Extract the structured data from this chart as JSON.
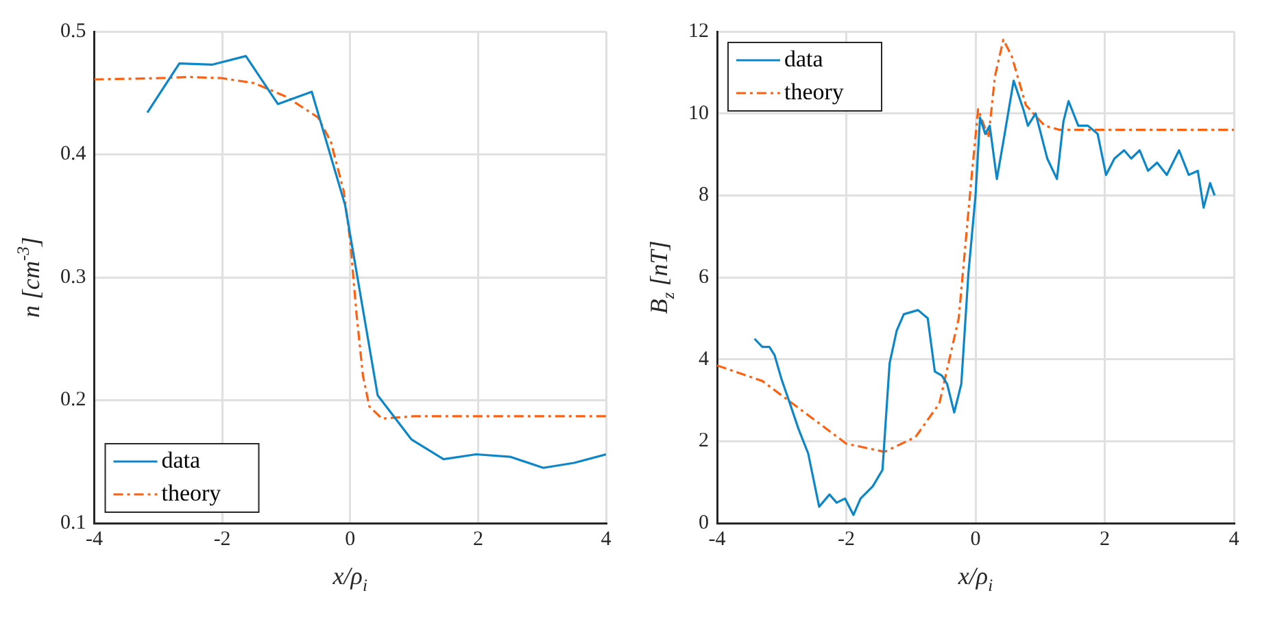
{
  "chart_data": [
    {
      "type": "line",
      "xlabel": "x/ρ$_{i}$",
      "ylabel": "n [cm$^{-3}$]",
      "xlim": [
        -4,
        4
      ],
      "xticks": [
        -4,
        -2,
        0,
        2,
        4
      ],
      "ylim": [
        0.1,
        0.5
      ],
      "yticks": [
        0.1,
        0.2,
        0.3,
        0.4,
        0.5
      ],
      "grid": true,
      "legend": "bottom left",
      "series": [
        {
          "name": "data",
          "color": "#0b87c9",
          "line_style": "solid",
          "x": [
            -3.17,
            -2.67,
            -2.16,
            -1.63,
            -1.13,
            -0.6,
            -0.08,
            0.43,
            0.96,
            1.46,
            1.97,
            2.5,
            3.02,
            3.5,
            4.0
          ],
          "values": [
            0.434,
            0.474,
            0.473,
            0.48,
            0.441,
            0.451,
            0.359,
            0.204,
            0.168,
            0.152,
            0.156,
            0.154,
            0.145,
            0.149,
            0.156
          ]
        },
        {
          "name": "theory",
          "color": "#ff6010",
          "line_style": "dashed",
          "x": [
            -4,
            -3,
            -2.5,
            -2,
            -1.5,
            -1,
            -0.5,
            -0.3,
            -0.1,
            0,
            0.1,
            0.2,
            0.3,
            0.5,
            1,
            2,
            3,
            4
          ],
          "values": [
            0.461,
            0.462,
            0.463,
            0.462,
            0.458,
            0.447,
            0.43,
            0.41,
            0.37,
            0.33,
            0.27,
            0.22,
            0.195,
            0.185,
            0.187,
            0.187,
            0.187,
            0.187
          ]
        }
      ]
    },
    {
      "type": "line",
      "xlabel": "x/ρ$_{i}$",
      "ylabel": "B$_{z}$ [nT]",
      "xlim": [
        -4,
        4
      ],
      "xticks": [
        -4,
        -2,
        0,
        2,
        4
      ],
      "ylim": [
        0,
        12
      ],
      "yticks": [
        0,
        2,
        4,
        6,
        8,
        10,
        12
      ],
      "grid": true,
      "legend": "top left",
      "series": [
        {
          "name": "data",
          "color": "#0b87c9",
          "line_style": "solid",
          "x": [
            -3.42,
            -3.3,
            -3.19,
            -3.11,
            -3.0,
            -2.89,
            -2.74,
            -2.59,
            -2.42,
            -2.26,
            -2.15,
            -2.02,
            -1.89,
            -1.78,
            -1.59,
            -1.44,
            -1.33,
            -1.22,
            -1.11,
            -0.89,
            -0.74,
            -0.63,
            -0.52,
            -0.44,
            -0.33,
            -0.22,
            -0.11,
            0,
            0.07,
            0.15,
            0.22,
            0.33,
            0.44,
            0.59,
            0.74,
            0.81,
            0.93,
            1.11,
            1.26,
            1.36,
            1.44,
            1.59,
            1.74,
            1.89,
            2.02,
            2.15,
            2.3,
            2.41,
            2.54,
            2.67,
            2.81,
            2.96,
            3.15,
            3.3,
            3.44,
            3.53,
            3.63,
            3.7
          ],
          "values": [
            4.5,
            4.3,
            4.3,
            4.1,
            3.5,
            3.0,
            2.3,
            1.7,
            0.4,
            0.7,
            0.5,
            0.6,
            0.2,
            0.6,
            0.9,
            1.3,
            3.9,
            4.7,
            5.1,
            5.2,
            5.0,
            3.7,
            3.6,
            3.4,
            2.7,
            3.4,
            6.1,
            8.0,
            9.9,
            9.5,
            9.7,
            8.4,
            9.4,
            10.8,
            10.1,
            9.7,
            10.0,
            8.9,
            8.4,
            9.8,
            10.3,
            9.7,
            9.7,
            9.5,
            8.5,
            8.9,
            9.1,
            8.9,
            9.1,
            8.6,
            8.8,
            8.5,
            9.1,
            8.5,
            8.6,
            7.7,
            8.3,
            8.0
          ]
        },
        {
          "name": "theory",
          "color": "#ff6010",
          "line_style": "dashed",
          "x": [
            -4,
            -3.3,
            -2.56,
            -2,
            -1.41,
            -0.93,
            -0.56,
            -0.26,
            -0.07,
            0.04,
            0.11,
            0.2,
            0.3,
            0.43,
            0.56,
            0.78,
            1.07,
            1.3,
            2,
            3,
            4
          ],
          "values": [
            3.85,
            3.47,
            2.6,
            1.94,
            1.74,
            2.1,
            2.92,
            5.0,
            8.3,
            10.1,
            9.8,
            9.4,
            10.9,
            11.8,
            11.4,
            10.2,
            9.7,
            9.6,
            9.6,
            9.6,
            9.6
          ]
        }
      ]
    }
  ]
}
